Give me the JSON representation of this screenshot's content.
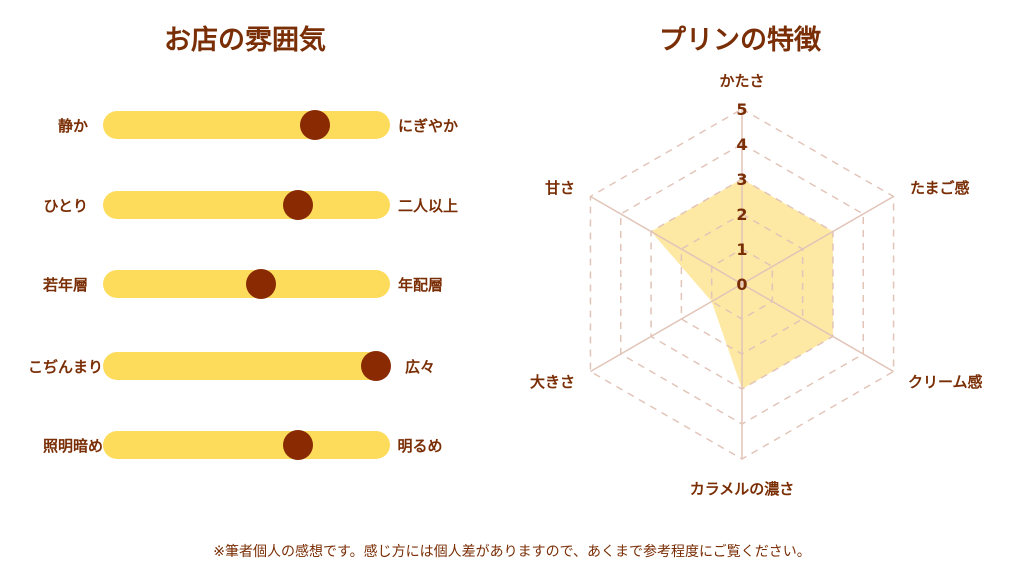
{
  "left_panel": {
    "title": "お店の雰囲気",
    "sliders": [
      {
        "left_label": "静か",
        "right_label": "にぎやか",
        "value": 0.74
      },
      {
        "left_label": "ひとり",
        "right_label": "二人以上",
        "value": 0.68
      },
      {
        "left_label": "若年層",
        "right_label": "年配層",
        "value": 0.55
      },
      {
        "left_label": "こぢんまり",
        "right_label": "広々",
        "value": 0.95
      },
      {
        "left_label": "照明暗め",
        "right_label": "明るめ",
        "value": 0.68
      }
    ],
    "colors": {
      "track": "#fddc5c",
      "knob": "#8a2a02",
      "text": "#7a2e05"
    }
  },
  "right_panel": {
    "title": "プリンの特徴"
  },
  "chart_data": {
    "type": "radar",
    "axes": [
      "かたさ",
      "たまご感",
      "クリーム感",
      "カラメルの濃さ",
      "大きさ",
      "甘さ"
    ],
    "values": [
      3,
      3,
      3,
      3,
      1,
      3
    ],
    "range": [
      0,
      5
    ],
    "ticks": [
      "0",
      "1",
      "2",
      "3",
      "4",
      "5"
    ],
    "grid": true,
    "colors": {
      "fill": "#fde79a",
      "grid": "#e2c4b8",
      "text": "#7a2e05"
    }
  },
  "footnote": "※筆者個人の感想です。感じ方には個人差がありますので、あくまで参考程度にご覧ください。"
}
